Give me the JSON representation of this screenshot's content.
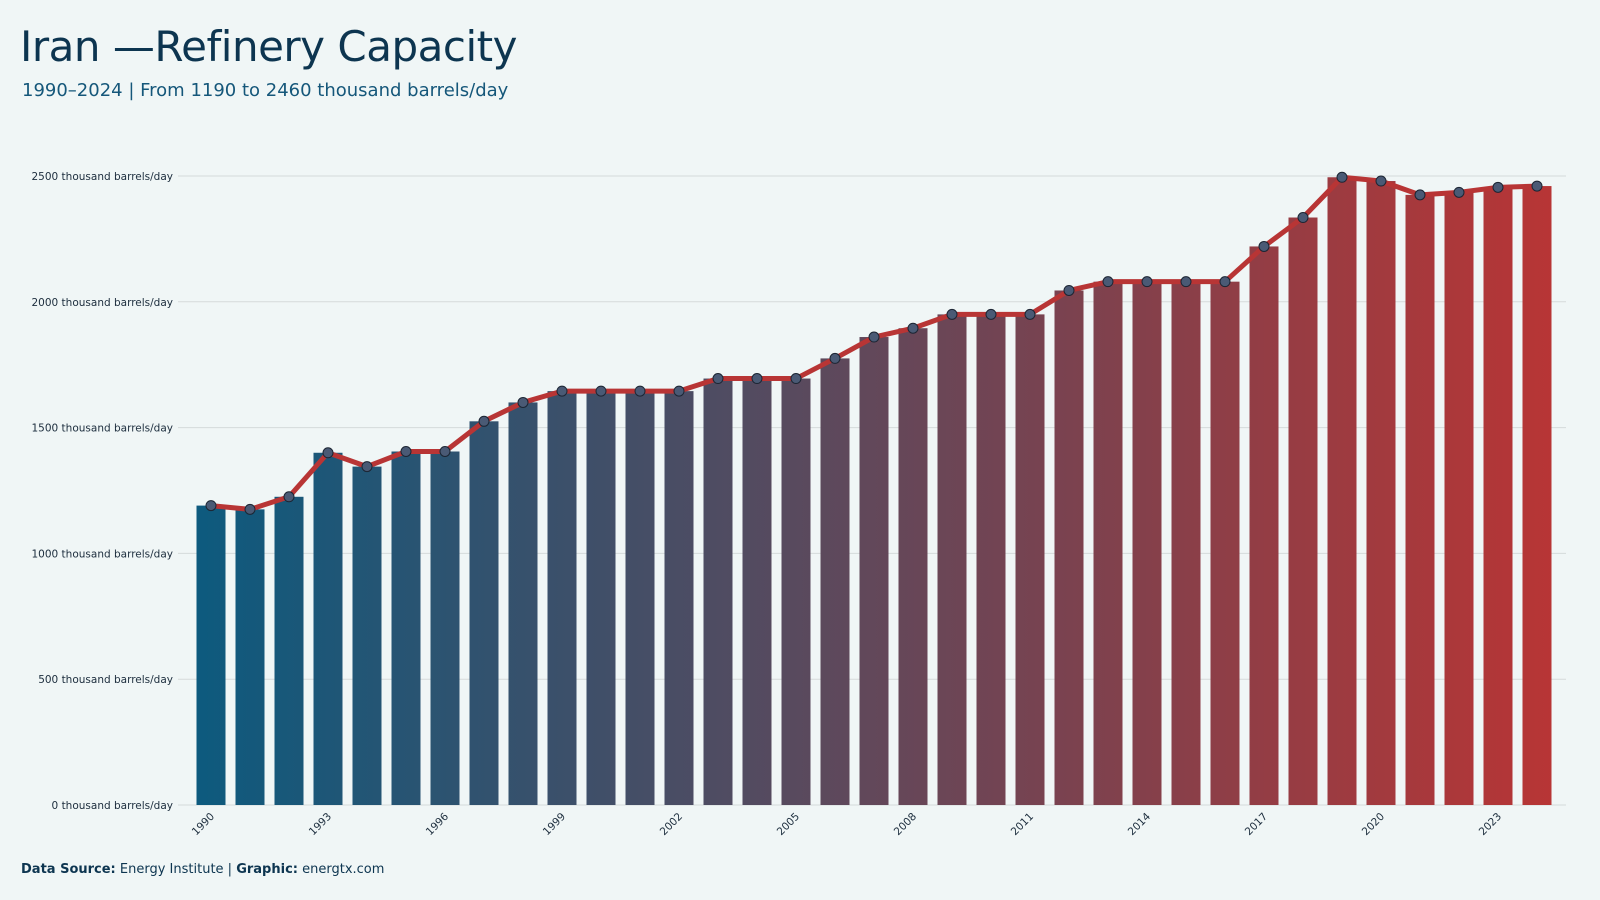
{
  "header": {
    "title": "Iran —Refinery Capacity",
    "subtitle": "1990–2024 | From 1190 to 2460 thousand barrels/day"
  },
  "footer": {
    "source_label": "Data Source:",
    "source_value": "Energy Institute |",
    "graphic_label": "Graphic:",
    "graphic_value": "energtx.com"
  },
  "colors": {
    "bar_start": "#0d5a7e",
    "bar_end": "#b83535",
    "line": "#b83535",
    "marker_fill": "#4a5a75",
    "gridline": "#d5dada"
  },
  "chart_data": {
    "type": "bar",
    "categories": [
      "1990",
      "1991",
      "1992",
      "1993",
      "1994",
      "1995",
      "1996",
      "1997",
      "1998",
      "1999",
      "2000",
      "2001",
      "2002",
      "2003",
      "2004",
      "2005",
      "2006",
      "2007",
      "2008",
      "2009",
      "2010",
      "2011",
      "2012",
      "2013",
      "2014",
      "2015",
      "2016",
      "2017",
      "2018",
      "2019",
      "2020",
      "2021",
      "2022",
      "2023",
      "2024"
    ],
    "values": [
      1190,
      1175,
      1225,
      1400,
      1345,
      1405,
      1405,
      1525,
      1600,
      1645,
      1645,
      1645,
      1645,
      1695,
      1695,
      1695,
      1775,
      1860,
      1895,
      1950,
      1950,
      1950,
      2045,
      2080,
      2080,
      2080,
      2080,
      2220,
      2335,
      2495,
      2480,
      2425,
      2435,
      2455,
      2460
    ],
    "series": [
      {
        "type": "bar",
        "values": [
          1190,
          1175,
          1225,
          1400,
          1345,
          1405,
          1405,
          1525,
          1600,
          1645,
          1645,
          1645,
          1645,
          1695,
          1695,
          1695,
          1775,
          1860,
          1895,
          1950,
          1950,
          1950,
          2045,
          2080,
          2080,
          2080,
          2080,
          2220,
          2335,
          2495,
          2480,
          2425,
          2435,
          2455,
          2460
        ]
      },
      {
        "type": "line",
        "values": [
          1190,
          1175,
          1225,
          1400,
          1345,
          1405,
          1405,
          1525,
          1600,
          1645,
          1645,
          1645,
          1645,
          1695,
          1695,
          1695,
          1775,
          1860,
          1895,
          1950,
          1950,
          1950,
          2045,
          2080,
          2080,
          2080,
          2080,
          2220,
          2335,
          2495,
          2480,
          2425,
          2435,
          2455,
          2460
        ]
      }
    ],
    "title": "Iran —Refinery Capacity",
    "subtitle": "1990–2024 | From 1190 to 2460 thousand barrels/day",
    "xlabel": "",
    "ylabel": "",
    "ylim": [
      0,
      2500
    ],
    "y_ticks": [
      0,
      500,
      1000,
      1500,
      2000,
      2500
    ],
    "y_tick_suffix": " thousand barrels/day",
    "x_tick_labels": [
      "1990",
      "1993",
      "1996",
      "1999",
      "2002",
      "2005",
      "2008",
      "2011",
      "2014",
      "2017",
      "2020",
      "2023"
    ],
    "grid": true,
    "legend": "none"
  }
}
